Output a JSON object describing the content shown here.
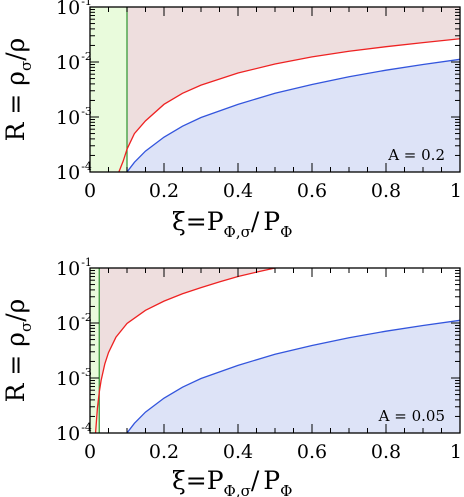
{
  "chart_data": [
    {
      "type": "line",
      "annotation": "A = 0.2",
      "xlabel": {
        "main": "ξ=P",
        "sub1": "Φ,σ",
        "slash": "/",
        "main2": "P",
        "sub2": "Φ"
      },
      "ylabel": {
        "main": "R = ρ",
        "sub": "σ",
        "rest": "/ρ"
      },
      "xlim": [
        0,
        1
      ],
      "ylim": [
        0.0001,
        0.1
      ],
      "yscale": "log",
      "x_ticks": [
        0,
        0.2,
        0.4,
        0.6,
        0.8,
        1
      ],
      "x_tick_labels": [
        "0",
        "0.2",
        "0.4",
        "0.6",
        "0.8",
        "1"
      ],
      "y_ticks": [
        0.0001,
        0.001,
        0.01,
        0.1
      ],
      "y_tick_labels": [
        {
          "base": "10",
          "exp": "-4"
        },
        {
          "base": "10",
          "exp": "-3"
        },
        {
          "base": "10",
          "exp": "-2"
        },
        {
          "base": "10",
          "exp": "-1"
        }
      ],
      "green_region_xmax": 0.1,
      "series": [
        {
          "color": "#ee2222",
          "x": [
            0.078,
            0.09,
            0.1,
            0.12,
            0.15,
            0.2,
            0.25,
            0.3,
            0.4,
            0.5,
            0.6,
            0.7,
            0.8,
            0.9,
            1.0
          ],
          "y": [
            0.0001,
            0.00016,
            0.00026,
            0.0005,
            0.00085,
            0.0017,
            0.0027,
            0.0038,
            0.0063,
            0.0092,
            0.0124,
            0.0157,
            0.019,
            0.0225,
            0.0265
          ]
        },
        {
          "color": "#3355dd",
          "x": [
            0.1,
            0.12,
            0.15,
            0.2,
            0.25,
            0.3,
            0.4,
            0.5,
            0.6,
            0.7,
            0.8,
            0.9,
            1.0
          ],
          "y": [
            0.0001,
            0.00015,
            0.00024,
            0.00043,
            0.00068,
            0.00098,
            0.0017,
            0.0027,
            0.0039,
            0.0054,
            0.0071,
            0.009,
            0.0112
          ]
        }
      ]
    },
    {
      "type": "line",
      "annotation": "A = 0.05",
      "xlabel": {
        "main": "ξ=P",
        "sub1": "Φ,σ",
        "slash": "/",
        "main2": "P",
        "sub2": "Φ"
      },
      "ylabel": {
        "main": "R = ρ",
        "sub": "σ",
        "rest": "/ρ"
      },
      "xlim": [
        0,
        1
      ],
      "ylim": [
        0.0001,
        0.1
      ],
      "yscale": "log",
      "x_ticks": [
        0,
        0.2,
        0.4,
        0.6,
        0.8,
        1
      ],
      "x_tick_labels": [
        "0",
        "0.2",
        "0.4",
        "0.6",
        "0.8",
        "1"
      ],
      "y_ticks": [
        0.0001,
        0.001,
        0.01,
        0.1
      ],
      "y_tick_labels": [
        {
          "base": "10",
          "exp": "-4"
        },
        {
          "base": "10",
          "exp": "-3"
        },
        {
          "base": "10",
          "exp": "-2"
        },
        {
          "base": "10",
          "exp": "-1"
        }
      ],
      "green_region_xmax": 0.025,
      "series": [
        {
          "color": "#ee2222",
          "x": [
            0.015,
            0.02,
            0.025,
            0.03,
            0.04,
            0.05,
            0.07,
            0.1,
            0.15,
            0.2,
            0.25,
            0.3,
            0.35,
            0.4,
            0.45,
            0.5
          ],
          "y": [
            0.0001,
            0.00028,
            0.00055,
            0.0009,
            0.0018,
            0.0029,
            0.0055,
            0.0098,
            0.017,
            0.025,
            0.034,
            0.044,
            0.056,
            0.07,
            0.084,
            0.1
          ]
        },
        {
          "color": "#3355dd",
          "x": [
            0.1,
            0.12,
            0.15,
            0.2,
            0.25,
            0.3,
            0.4,
            0.5,
            0.6,
            0.7,
            0.8,
            0.9,
            1.0
          ],
          "y": [
            0.0001,
            0.00015,
            0.00024,
            0.00043,
            0.00068,
            0.00098,
            0.0017,
            0.0027,
            0.0039,
            0.0054,
            0.0071,
            0.009,
            0.0112
          ]
        }
      ]
    }
  ]
}
